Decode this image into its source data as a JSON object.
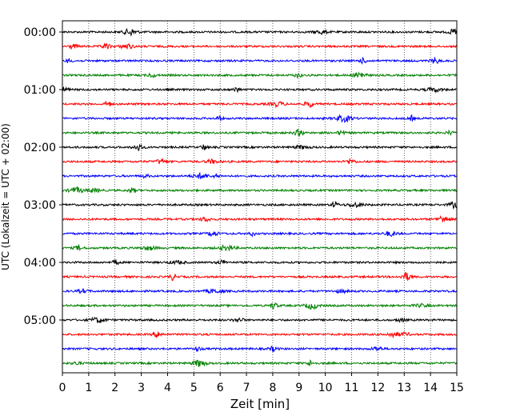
{
  "chart_data": {
    "type": "line",
    "title": "",
    "xlabel": "Zeit  [min]",
    "ylabel": "UTC (Lokalzeit = UTC + 02:00)",
    "xlim": [
      0,
      15
    ],
    "x_ticks": [
      "0",
      "1",
      "2",
      "3",
      "4",
      "5",
      "6",
      "7",
      "8",
      "9",
      "10",
      "11",
      "12",
      "13",
      "14",
      "15"
    ],
    "y_tick_labels": [
      "00:00",
      "01:00",
      "02:00",
      "03:00",
      "04:00",
      "05:00"
    ],
    "grid": "vertical dotted",
    "trace_interval_minutes": 15,
    "trace_count": 24,
    "trace_colors": [
      "#000000",
      "#ff0000",
      "#0000ff",
      "#008000"
    ],
    "series_note": "Seismogram helicorder: one trace per 15 minutes, from 00:00 to 05:45 UTC"
  }
}
